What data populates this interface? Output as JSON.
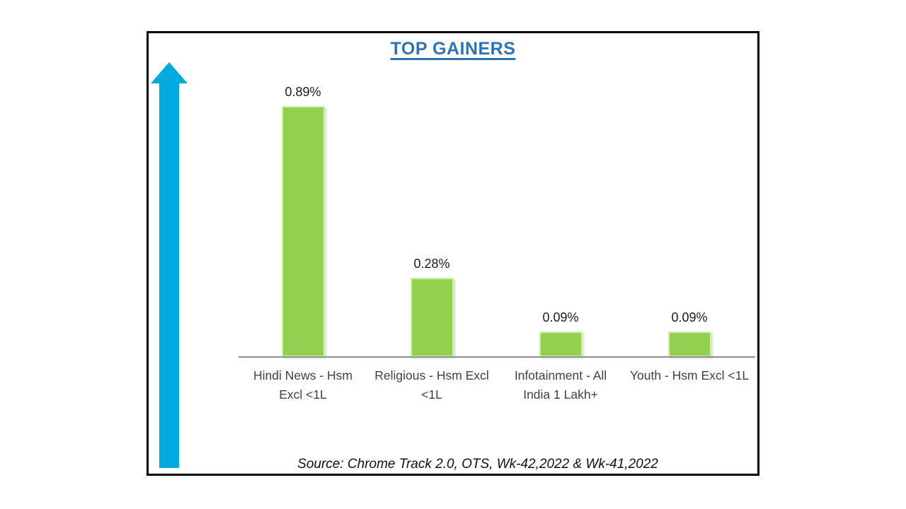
{
  "title": "TOP GAINERS",
  "colors": {
    "title": "#2E74B5",
    "arrow": "#00A9DE",
    "bar": "#92D050",
    "axis_line": "#8E8E8E",
    "frame_border": "#000000"
  },
  "arrow": {
    "direction": "up",
    "name": "up-arrow"
  },
  "chart_data": {
    "type": "bar",
    "title": "TOP GAINERS",
    "categories": [
      "Hindi News - Hsm Excl <1L",
      "Religious - Hsm Excl <1L",
      "Infotainment - All India 1 Lakh+",
      "Youth - Hsm Excl <1L"
    ],
    "categories_wrapped": [
      [
        "Hindi News - Hsm",
        "Excl <1L"
      ],
      [
        "Religious - Hsm Excl",
        "<1L"
      ],
      [
        "Infotainment - All",
        "India 1 Lakh+"
      ],
      [
        "Youth - Hsm Excl <1L"
      ]
    ],
    "values": [
      0.89,
      0.28,
      0.09,
      0.09
    ],
    "value_labels": [
      "0.89%",
      "0.28%",
      "0.09%",
      "0.09%"
    ],
    "xlabel": "",
    "ylabel": "",
    "ylim": [
      0,
      1.15
    ],
    "grid": false,
    "legend": false,
    "bar_color": "#92D050",
    "data_label_position": "above-bar"
  },
  "source_note": "Source: Chrome Track 2.0, OTS, Wk-42,2022 & Wk-41,2022"
}
